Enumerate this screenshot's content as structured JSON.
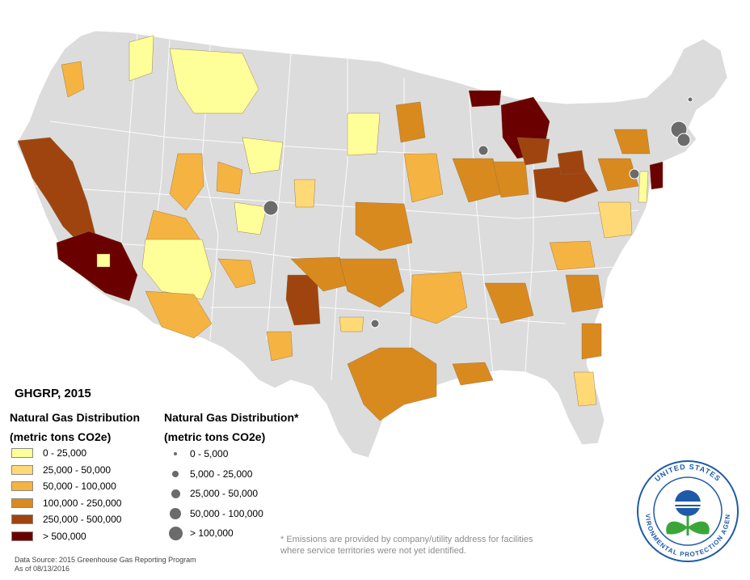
{
  "map_title": "GHGRP, 2015",
  "legend_area": {
    "title_line1": "Natural Gas Distribution",
    "title_line2": "(metric tons CO2e)",
    "classes": [
      {
        "label": "0 - 25,000",
        "color": "#ffff99"
      },
      {
        "label": "25,000 - 50,000",
        "color": "#fed976"
      },
      {
        "label": "50,000 - 100,000",
        "color": "#f5b342"
      },
      {
        "label": "100,000 - 250,000",
        "color": "#d98a1f"
      },
      {
        "label": "250,000 - 500,000",
        "color": "#a0440f"
      },
      {
        "label": "> 500,000",
        "color": "#6b0000"
      }
    ]
  },
  "legend_points": {
    "title_line1": "Natural Gas Distribution*",
    "title_line2": "(metric tons CO2e)",
    "classes": [
      {
        "label": "0 - 5,000",
        "size": 1
      },
      {
        "label": "5,000 - 25,000",
        "size": 2
      },
      {
        "label": "25,000 - 50,000",
        "size": 3
      },
      {
        "label": "50,000 - 100,000",
        "size": 4
      },
      {
        "label": "> 100,000",
        "size": 5
      }
    ]
  },
  "footnote_line1": "* Emissions are provided by company/utility address for facilities",
  "footnote_line2": "where service territories were not yet identified.",
  "source_line1": "Data Source: 2015 Greenhouse Gas Reporting Program",
  "source_line2": "As of 08/13/2016",
  "logo": {
    "text_top": "UNITED STATES",
    "text_bottom": "ENVIRONMENTAL PROTECTION AGENCY",
    "colors": {
      "ring": "#1f5aa8",
      "plant": "#3aa63a",
      "water": "#1f5aa8"
    }
  },
  "colors": {
    "land": "#dcdcdc",
    "border": "#ffffff",
    "point": "#6b6b6b"
  }
}
